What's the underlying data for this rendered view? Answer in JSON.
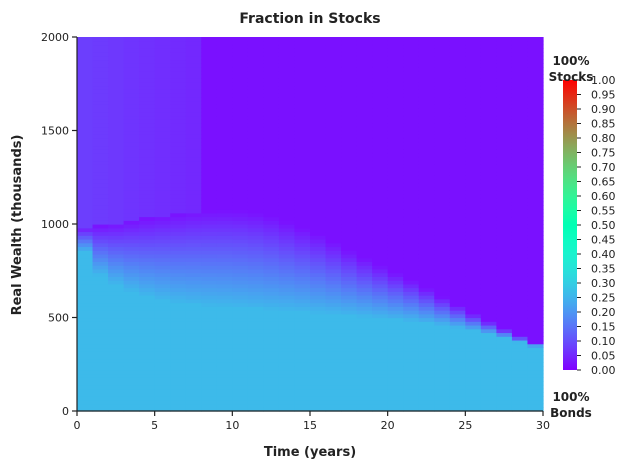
{
  "chart_data": {
    "type": "heatmap",
    "title": "Fraction in Stocks",
    "xlabel": "Time (years)",
    "ylabel": "Real Wealth (thousands)",
    "xlim": [
      0,
      30
    ],
    "ylim": [
      0,
      2000
    ],
    "x_ticks": [
      "0",
      "5",
      "10",
      "15",
      "20",
      "25",
      "30"
    ],
    "y_ticks": [
      "0",
      "500",
      "1000",
      "1500",
      "2000"
    ],
    "colorbar": {
      "colormap": "rainbow",
      "range": [
        0,
        1
      ],
      "ticks": [
        "0.00",
        "0.05",
        "0.10",
        "0.15",
        "0.20",
        "0.25",
        "0.30",
        "0.35",
        "0.40",
        "0.45",
        "0.50",
        "0.55",
        "0.60",
        "0.65",
        "0.70",
        "0.75",
        "0.80",
        "0.85",
        "0.90",
        "0.95",
        "1.00"
      ],
      "top_label_line1": "100%",
      "top_label_line2": "Stocks",
      "bottom_label_line1": "100%",
      "bottom_label_line2": "Bonds"
    },
    "regions": {
      "bonds_heavy_value": 0.26,
      "stocks_floor_value": 0.02,
      "upper_left_value": 0.08,
      "lower_boundary": [
        {
          "t": 0,
          "w": 950
        },
        {
          "t": 1,
          "w": 760
        },
        {
          "t": 2,
          "w": 700
        },
        {
          "t": 3,
          "w": 660
        },
        {
          "t": 4,
          "w": 630
        },
        {
          "t": 5,
          "w": 605
        },
        {
          "t": 6,
          "w": 590
        },
        {
          "t": 7,
          "w": 578
        },
        {
          "t": 8,
          "w": 570
        },
        {
          "t": 9,
          "w": 565
        },
        {
          "t": 10,
          "w": 560
        },
        {
          "t": 12,
          "w": 548
        },
        {
          "t": 15,
          "w": 530
        },
        {
          "t": 18,
          "w": 510
        },
        {
          "t": 20,
          "w": 495
        },
        {
          "t": 22,
          "w": 480
        },
        {
          "t": 24,
          "w": 455
        },
        {
          "t": 26,
          "w": 425
        },
        {
          "t": 28,
          "w": 385
        },
        {
          "t": 29,
          "w": 355
        },
        {
          "t": 30,
          "w": 340
        }
      ],
      "upper_boundary": [
        {
          "t": 0,
          "w": 980
        },
        {
          "t": 2,
          "w": 1000
        },
        {
          "t": 4,
          "w": 1030
        },
        {
          "t": 6,
          "w": 1055
        },
        {
          "t": 8,
          "w": 1075
        },
        {
          "t": 10,
          "w": 1080
        },
        {
          "t": 12,
          "w": 1060
        },
        {
          "t": 14,
          "w": 1000
        },
        {
          "t": 16,
          "w": 930
        },
        {
          "t": 18,
          "w": 840
        },
        {
          "t": 20,
          "w": 760
        },
        {
          "t": 22,
          "w": 680
        },
        {
          "t": 24,
          "w": 590
        },
        {
          "t": 26,
          "w": 500
        },
        {
          "t": 28,
          "w": 420
        },
        {
          "t": 30,
          "w": 345
        }
      ],
      "upper_left_region_until_t": 8
    }
  }
}
